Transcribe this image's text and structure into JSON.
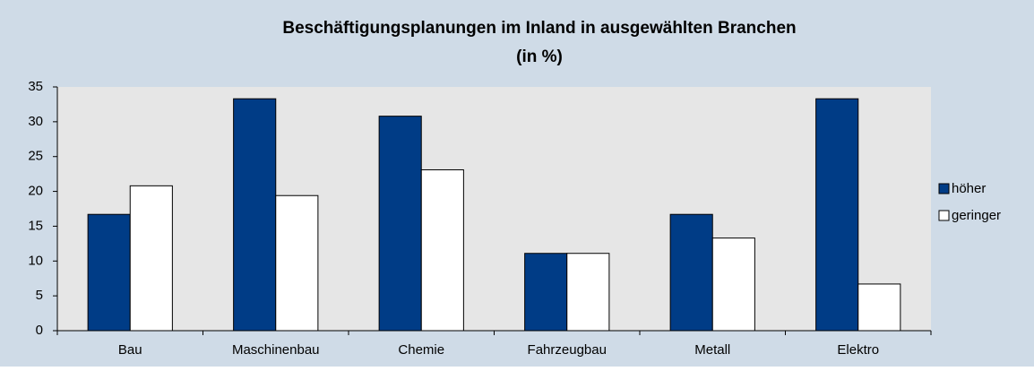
{
  "chart_data": {
    "type": "bar",
    "title": "Beschäftigungsplanungen im Inland in ausgewählten Branchen",
    "subtitle": "(in %)",
    "categories": [
      "Bau",
      "Maschinenbau",
      "Chemie",
      "Fahrzeugbau",
      "Metall",
      "Elektro"
    ],
    "series": [
      {
        "name": "höher",
        "color": "#003c86",
        "values": [
          16.7,
          33.3,
          30.8,
          11.1,
          16.7,
          33.3
        ]
      },
      {
        "name": "geringer",
        "color": "#ffffff",
        "values": [
          20.8,
          19.4,
          23.1,
          11.1,
          13.3,
          6.7
        ]
      }
    ],
    "ylim": [
      0,
      35
    ],
    "yticks": [
      0,
      5,
      10,
      15,
      20,
      25,
      30,
      35
    ],
    "grid": false,
    "legend": "right"
  }
}
